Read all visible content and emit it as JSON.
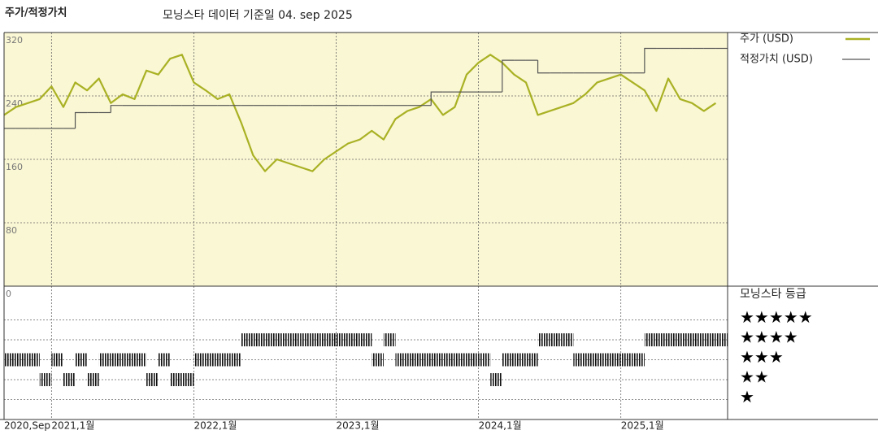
{
  "chart_data": [
    {
      "type": "line",
      "title": "주가/적정가치",
      "subtitle": "모닝스타 데이터 기준일 04. sep 2025",
      "x": [
        "2020-09",
        "2020-10",
        "2020-11",
        "2020-12",
        "2021-01",
        "2021-02",
        "2021-03",
        "2021-04",
        "2021-05",
        "2021-06",
        "2021-07",
        "2021-08",
        "2021-09",
        "2021-10",
        "2021-11",
        "2021-12",
        "2022-01",
        "2022-02",
        "2022-03",
        "2022-04",
        "2022-05",
        "2022-06",
        "2022-07",
        "2022-08",
        "2022-09",
        "2022-10",
        "2022-11",
        "2022-12",
        "2023-01",
        "2023-02",
        "2023-03",
        "2023-04",
        "2023-05",
        "2023-06",
        "2023-07",
        "2023-08",
        "2023-09",
        "2023-10",
        "2023-11",
        "2023-12",
        "2024-01",
        "2024-02",
        "2024-03",
        "2024-04",
        "2024-05",
        "2024-06",
        "2024-07",
        "2024-08",
        "2024-09",
        "2024-10",
        "2024-11",
        "2024-12",
        "2025-01",
        "2025-02",
        "2025-03",
        "2025-04",
        "2025-05",
        "2025-06",
        "2025-07",
        "2025-08",
        "2025-09"
      ],
      "series": [
        {
          "name": "주가 (USD)",
          "color": "#a9b124",
          "values": [
            216,
            226,
            231,
            236,
            252,
            226,
            257,
            247,
            262,
            231,
            242,
            236,
            272,
            267,
            287,
            292,
            257,
            247,
            236,
            242,
            206,
            165,
            145,
            160,
            155,
            150,
            145,
            160,
            170,
            180,
            185,
            196,
            185,
            211,
            221,
            226,
            236,
            216,
            226,
            267,
            282,
            292,
            282,
            267,
            257,
            216,
            221,
            226,
            231,
            242,
            257,
            262,
            267,
            257,
            247,
            221,
            262,
            236,
            231,
            221,
            231
          ]
        },
        {
          "name": "적정가치 (USD)",
          "color": "#555555",
          "step": true,
          "values": [
            199,
            199,
            199,
            199,
            199,
            199,
            219,
            219,
            219,
            228,
            228,
            228,
            228,
            228,
            228,
            228,
            228,
            228,
            228,
            228,
            228,
            228,
            228,
            228,
            228,
            228,
            228,
            228,
            228,
            228,
            228,
            228,
            228,
            228,
            228,
            228,
            245,
            245,
            245,
            245,
            245,
            245,
            285,
            285,
            285,
            269,
            269,
            269,
            269,
            269,
            269,
            269,
            269,
            269,
            300,
            300,
            300,
            300,
            300,
            300,
            300
          ]
        }
      ],
      "xlim": [
        "2020-09",
        "2025-10"
      ],
      "xticks": [
        {
          "value": "2020-09",
          "label": "2020,Sep"
        },
        {
          "value": "2021-01",
          "label": "2021,1월"
        },
        {
          "value": "2022-01",
          "label": "2022,1월"
        },
        {
          "value": "2023-01",
          "label": "2023,1월"
        },
        {
          "value": "2024-01",
          "label": "2024,1월"
        },
        {
          "value": "2025-01",
          "label": "2025,1월"
        }
      ],
      "ylim": [
        0,
        320
      ],
      "yticks": [
        0,
        80,
        160,
        240,
        320
      ],
      "grid": true
    },
    {
      "type": "rating",
      "title": "모닝스타 등급",
      "color": "#111111",
      "values": [
        3,
        3,
        3,
        2,
        3,
        2,
        3,
        2,
        3,
        3,
        3,
        3,
        2,
        3,
        2,
        2,
        3,
        3,
        3,
        3,
        4,
        4,
        4,
        4,
        4,
        4,
        4,
        4,
        4,
        4,
        4,
        3,
        4,
        3,
        3,
        3,
        3,
        3,
        3,
        3,
        3,
        2,
        3,
        3,
        3,
        4,
        4,
        4,
        3,
        3,
        3,
        3,
        3,
        3,
        4,
        4,
        4,
        4,
        4,
        4,
        4
      ],
      "yticks": [
        {
          "value": 5,
          "label": "★★★★★"
        },
        {
          "value": 4,
          "label": "★★★★"
        },
        {
          "value": 3,
          "label": "★★★"
        },
        {
          "value": 2,
          "label": "★★"
        },
        {
          "value": 1,
          "label": "★"
        }
      ]
    }
  ]
}
